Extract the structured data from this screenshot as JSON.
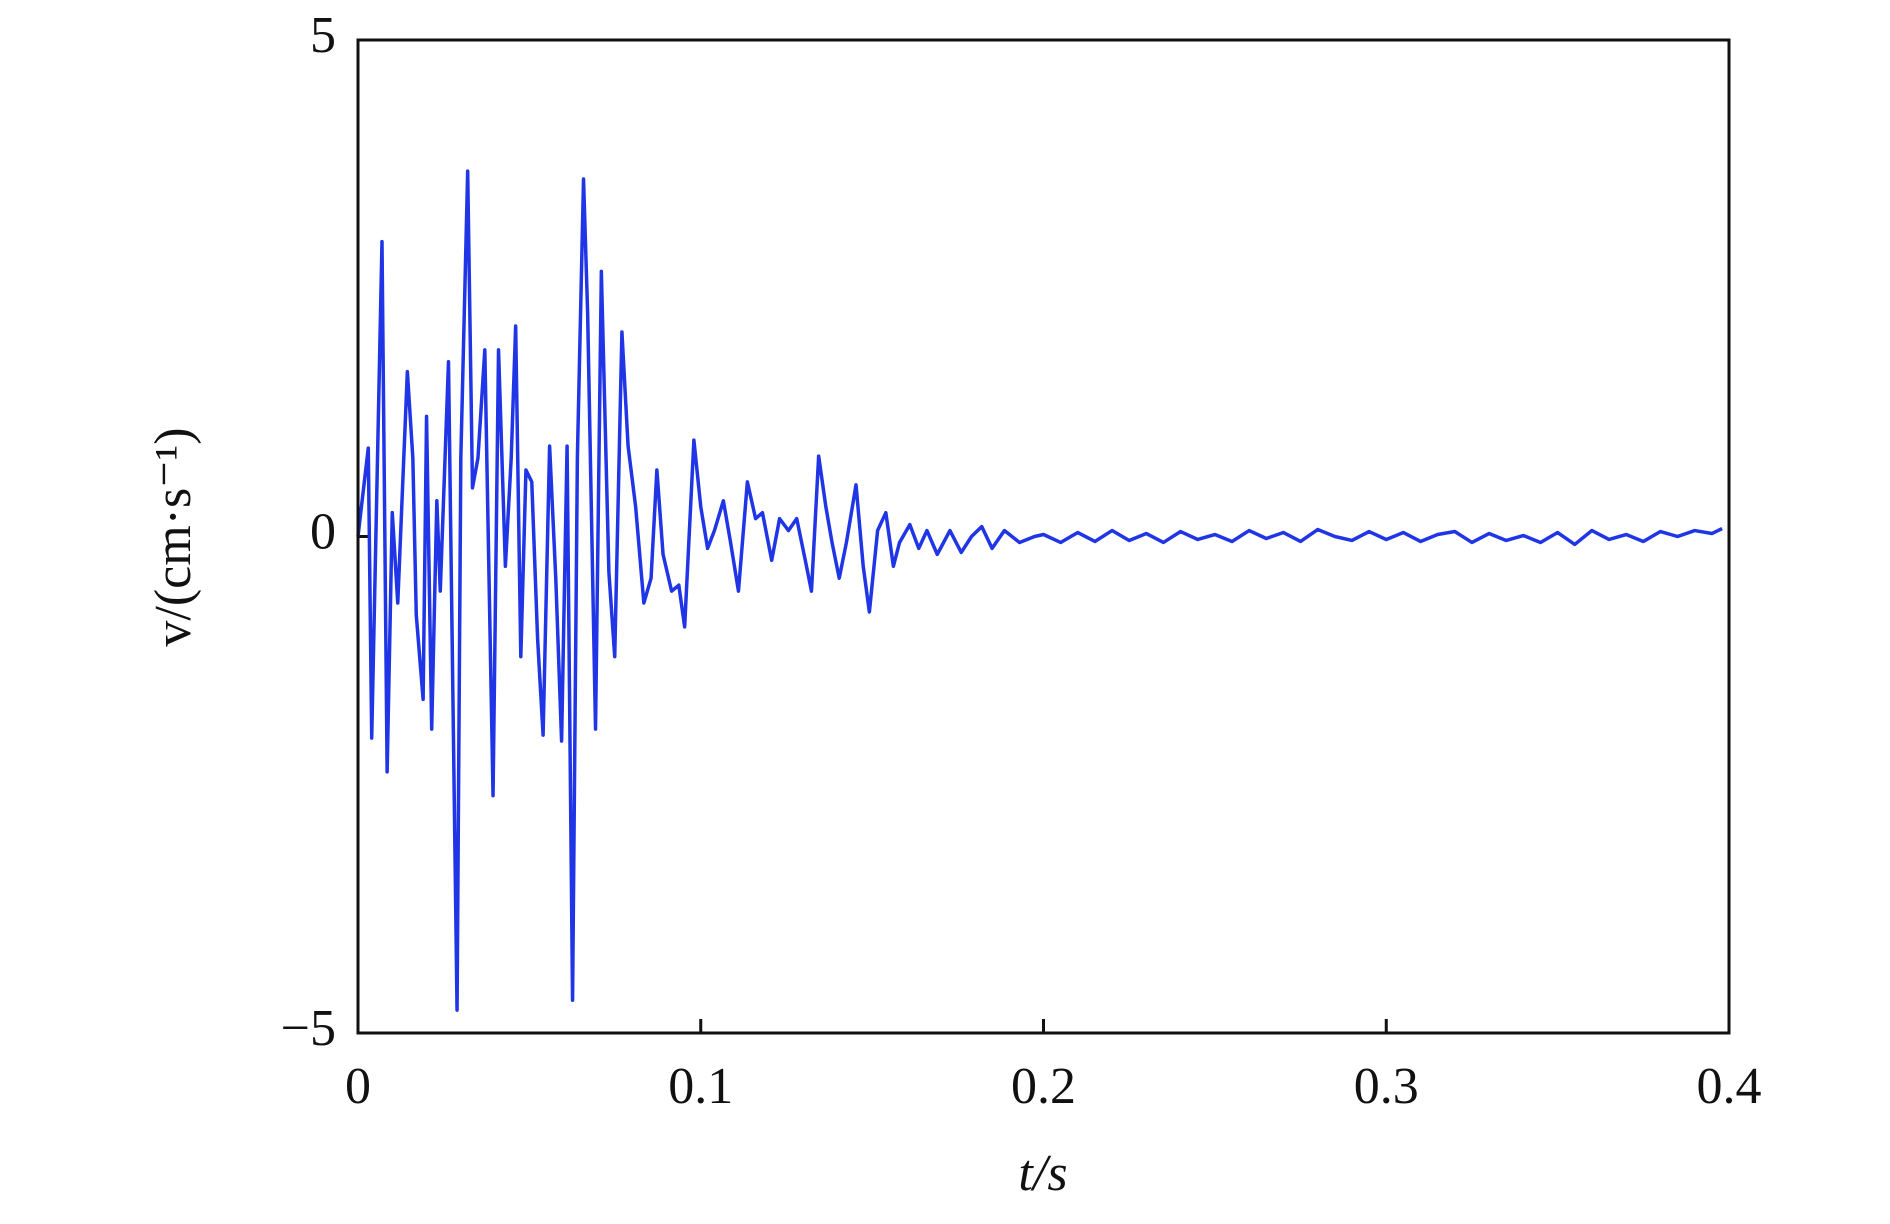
{
  "chart_data": {
    "type": "line",
    "x_label": "t/s",
    "y_label": "v/(cm·s⁻¹)",
    "xlim": [
      0,
      0.4
    ],
    "xticks": [
      0,
      0.1,
      0.2,
      0.3,
      0.4
    ],
    "ylim": [
      -5,
      5
    ],
    "yticks": [
      {
        "value": -5,
        "label": "−5"
      },
      0,
      5
    ],
    "color": "#1f35e6",
    "x": [
      0,
      0.001,
      0.003,
      0.004,
      0.007,
      0.0085,
      0.01,
      0.0116,
      0.0144,
      0.016,
      0.017,
      0.019,
      0.02,
      0.0215,
      0.023,
      0.024,
      0.0264,
      0.0289,
      0.03,
      0.032,
      0.0334,
      0.035,
      0.037,
      0.0394,
      0.041,
      0.043,
      0.0447,
      0.046,
      0.0475,
      0.049,
      0.0507,
      0.0524,
      0.054,
      0.0559,
      0.0577,
      0.0594,
      0.061,
      0.0626,
      0.064,
      0.0658,
      0.067,
      0.0693,
      0.071,
      0.0732,
      0.0749,
      0.077,
      0.0788,
      0.081,
      0.0834,
      0.0855,
      0.0872,
      0.089,
      0.0915,
      0.0936,
      0.0953,
      0.098,
      0.1,
      0.102,
      0.104,
      0.1066,
      0.1087,
      0.111,
      0.1136,
      0.116,
      0.118,
      0.1207,
      0.123,
      0.1256,
      0.128,
      0.1305,
      0.1323,
      0.1344,
      0.1365,
      0.1383,
      0.1404,
      0.1425,
      0.1453,
      0.1474,
      0.1492,
      0.1516,
      0.154,
      0.1562,
      0.158,
      0.161,
      0.1636,
      0.166,
      0.169,
      0.1727,
      0.176,
      0.179,
      0.182,
      0.185,
      0.1886,
      0.193,
      0.1974,
      0.2,
      0.205,
      0.21,
      0.215,
      0.22,
      0.225,
      0.23,
      0.235,
      0.24,
      0.245,
      0.25,
      0.255,
      0.26,
      0.265,
      0.27,
      0.275,
      0.28,
      0.285,
      0.29,
      0.295,
      0.3,
      0.305,
      0.31,
      0.315,
      0.32,
      0.325,
      0.33,
      0.335,
      0.34,
      0.345,
      0.35,
      0.355,
      0.36,
      0.365,
      0.37,
      0.375,
      0.38,
      0.385,
      0.39,
      0.395,
      0.398
    ],
    "values": [
      0,
      0.3,
      0.89,
      -2.03,
      2.97,
      -2.37,
      0.24,
      -0.67,
      1.66,
      0.79,
      -0.79,
      -1.64,
      1.21,
      -1.94,
      0.36,
      -0.55,
      1.76,
      -4.77,
      0.79,
      3.68,
      0.49,
      0.79,
      1.88,
      -2.61,
      1.88,
      -0.3,
      0.79,
      2.12,
      -1.21,
      0.67,
      0.55,
      -1.03,
      -2.0,
      0.91,
      -0.42,
      -2.06,
      0.91,
      -4.67,
      0.79,
      3.6,
      2.25,
      -1.94,
      2.67,
      -0.36,
      -1.21,
      2.06,
      0.91,
      0.3,
      -0.67,
      -0.42,
      0.67,
      -0.18,
      -0.55,
      -0.49,
      -0.91,
      0.97,
      0.3,
      -0.12,
      0.06,
      0.36,
      -0.06,
      -0.55,
      0.55,
      0.18,
      0.24,
      -0.24,
      0.18,
      0.06,
      0.18,
      -0.24,
      -0.55,
      0.81,
      0.3,
      -0.06,
      -0.42,
      -0.06,
      0.52,
      -0.3,
      -0.76,
      0.06,
      0.24,
      -0.3,
      -0.06,
      0.12,
      -0.12,
      0.06,
      -0.18,
      0.06,
      -0.16,
      0,
      0.1,
      -0.12,
      0.06,
      -0.06,
      0,
      0.02,
      -0.06,
      0.04,
      -0.05,
      0.06,
      -0.04,
      0.03,
      -0.06,
      0.05,
      -0.03,
      0.02,
      -0.05,
      0.06,
      -0.02,
      0.04,
      -0.05,
      0.07,
      0,
      -0.04,
      0.05,
      -0.03,
      0.04,
      -0.05,
      0.02,
      0.05,
      -0.06,
      0.03,
      -0.04,
      0.01,
      -0.06,
      0.04,
      -0.08,
      0.06,
      -0.03,
      0.02,
      -0.05,
      0.05,
      0,
      0.06,
      0.03,
      0.08
    ]
  }
}
